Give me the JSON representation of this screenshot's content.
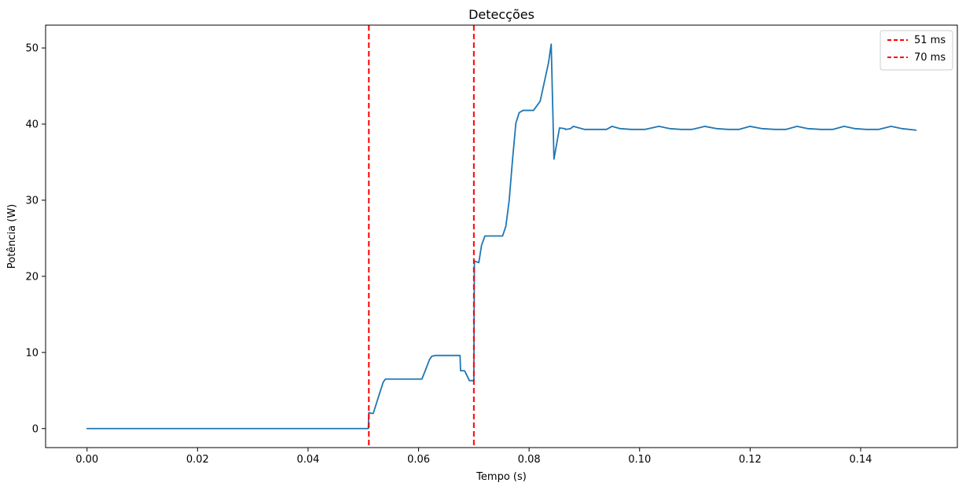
{
  "chart_data": {
    "type": "line",
    "title": "Detecções",
    "xlabel": "Tempo (s)",
    "ylabel": "Potência (W)",
    "xlim": [
      -0.0075,
      0.1575
    ],
    "ylim": [
      -2.5,
      53
    ],
    "x_ticks": [
      0.0,
      0.02,
      0.04,
      0.06,
      0.08,
      0.1,
      0.12,
      0.14
    ],
    "x_tick_labels": [
      "0.00",
      "0.02",
      "0.04",
      "0.06",
      "0.08",
      "0.10",
      "0.12",
      "0.14"
    ],
    "y_ticks": [
      0,
      10,
      20,
      30,
      40,
      50
    ],
    "y_tick_labels": [
      "0",
      "10",
      "20",
      "30",
      "40",
      "50"
    ],
    "grid": false,
    "legend_position": "top-right",
    "series": [
      {
        "color": "#1f77b4",
        "x": [
          0.0,
          0.0255,
          0.0509,
          0.051,
          0.0514,
          0.0518,
          0.0528,
          0.0536,
          0.054,
          0.0545,
          0.056,
          0.058,
          0.06,
          0.0606,
          0.0612,
          0.062,
          0.0624,
          0.063,
          0.064,
          0.0655,
          0.067,
          0.0675,
          0.0676,
          0.0683,
          0.0684,
          0.0692,
          0.0699,
          0.07,
          0.0701,
          0.0709,
          0.0714,
          0.072,
          0.073,
          0.0745,
          0.0752,
          0.0758,
          0.0764,
          0.077,
          0.0776,
          0.0782,
          0.0789,
          0.0795,
          0.08,
          0.0808,
          0.082,
          0.0835,
          0.084,
          0.0845,
          0.0855,
          0.0865,
          0.0866,
          0.0867,
          0.0875,
          0.088,
          0.09,
          0.092,
          0.094,
          0.095,
          0.0965,
          0.0985,
          0.101,
          0.1035,
          0.1055,
          0.1075,
          0.1095,
          0.1118,
          0.114,
          0.116,
          0.118,
          0.12,
          0.1222,
          0.1245,
          0.1265,
          0.1285,
          0.1305,
          0.1328,
          0.135,
          0.137,
          0.139,
          0.141,
          0.1433,
          0.1455,
          0.1475,
          0.15
        ],
        "y": [
          0.0,
          0.0,
          0.0,
          2.1,
          2.0,
          2.0,
          4.3,
          6.1,
          6.5,
          6.5,
          6.5,
          6.5,
          6.5,
          6.5,
          7.6,
          9.1,
          9.5,
          9.6,
          9.6,
          9.6,
          9.6,
          9.6,
          7.6,
          7.6,
          7.5,
          6.3,
          6.3,
          6.3,
          22.0,
          21.8,
          24.1,
          25.3,
          25.3,
          25.3,
          25.3,
          26.6,
          30.0,
          35.3,
          40.1,
          41.5,
          41.8,
          41.8,
          41.8,
          41.8,
          43.0,
          48.0,
          50.5,
          35.4,
          39.5,
          39.4,
          39.3,
          39.3,
          39.4,
          39.7,
          39.3,
          39.3,
          39.3,
          39.7,
          39.4,
          39.3,
          39.3,
          39.7,
          39.4,
          39.3,
          39.3,
          39.7,
          39.4,
          39.3,
          39.3,
          39.7,
          39.4,
          39.3,
          39.3,
          39.7,
          39.4,
          39.3,
          39.3,
          39.7,
          39.4,
          39.3,
          39.3,
          39.7,
          39.4,
          39.2
        ]
      }
    ],
    "vlines": [
      {
        "name": "51 ms",
        "x": 0.051,
        "color": "#ff0000",
        "style": "dashed"
      },
      {
        "name": "70 ms",
        "x": 0.07,
        "color": "#ff0000",
        "style": "dashed"
      }
    ]
  }
}
